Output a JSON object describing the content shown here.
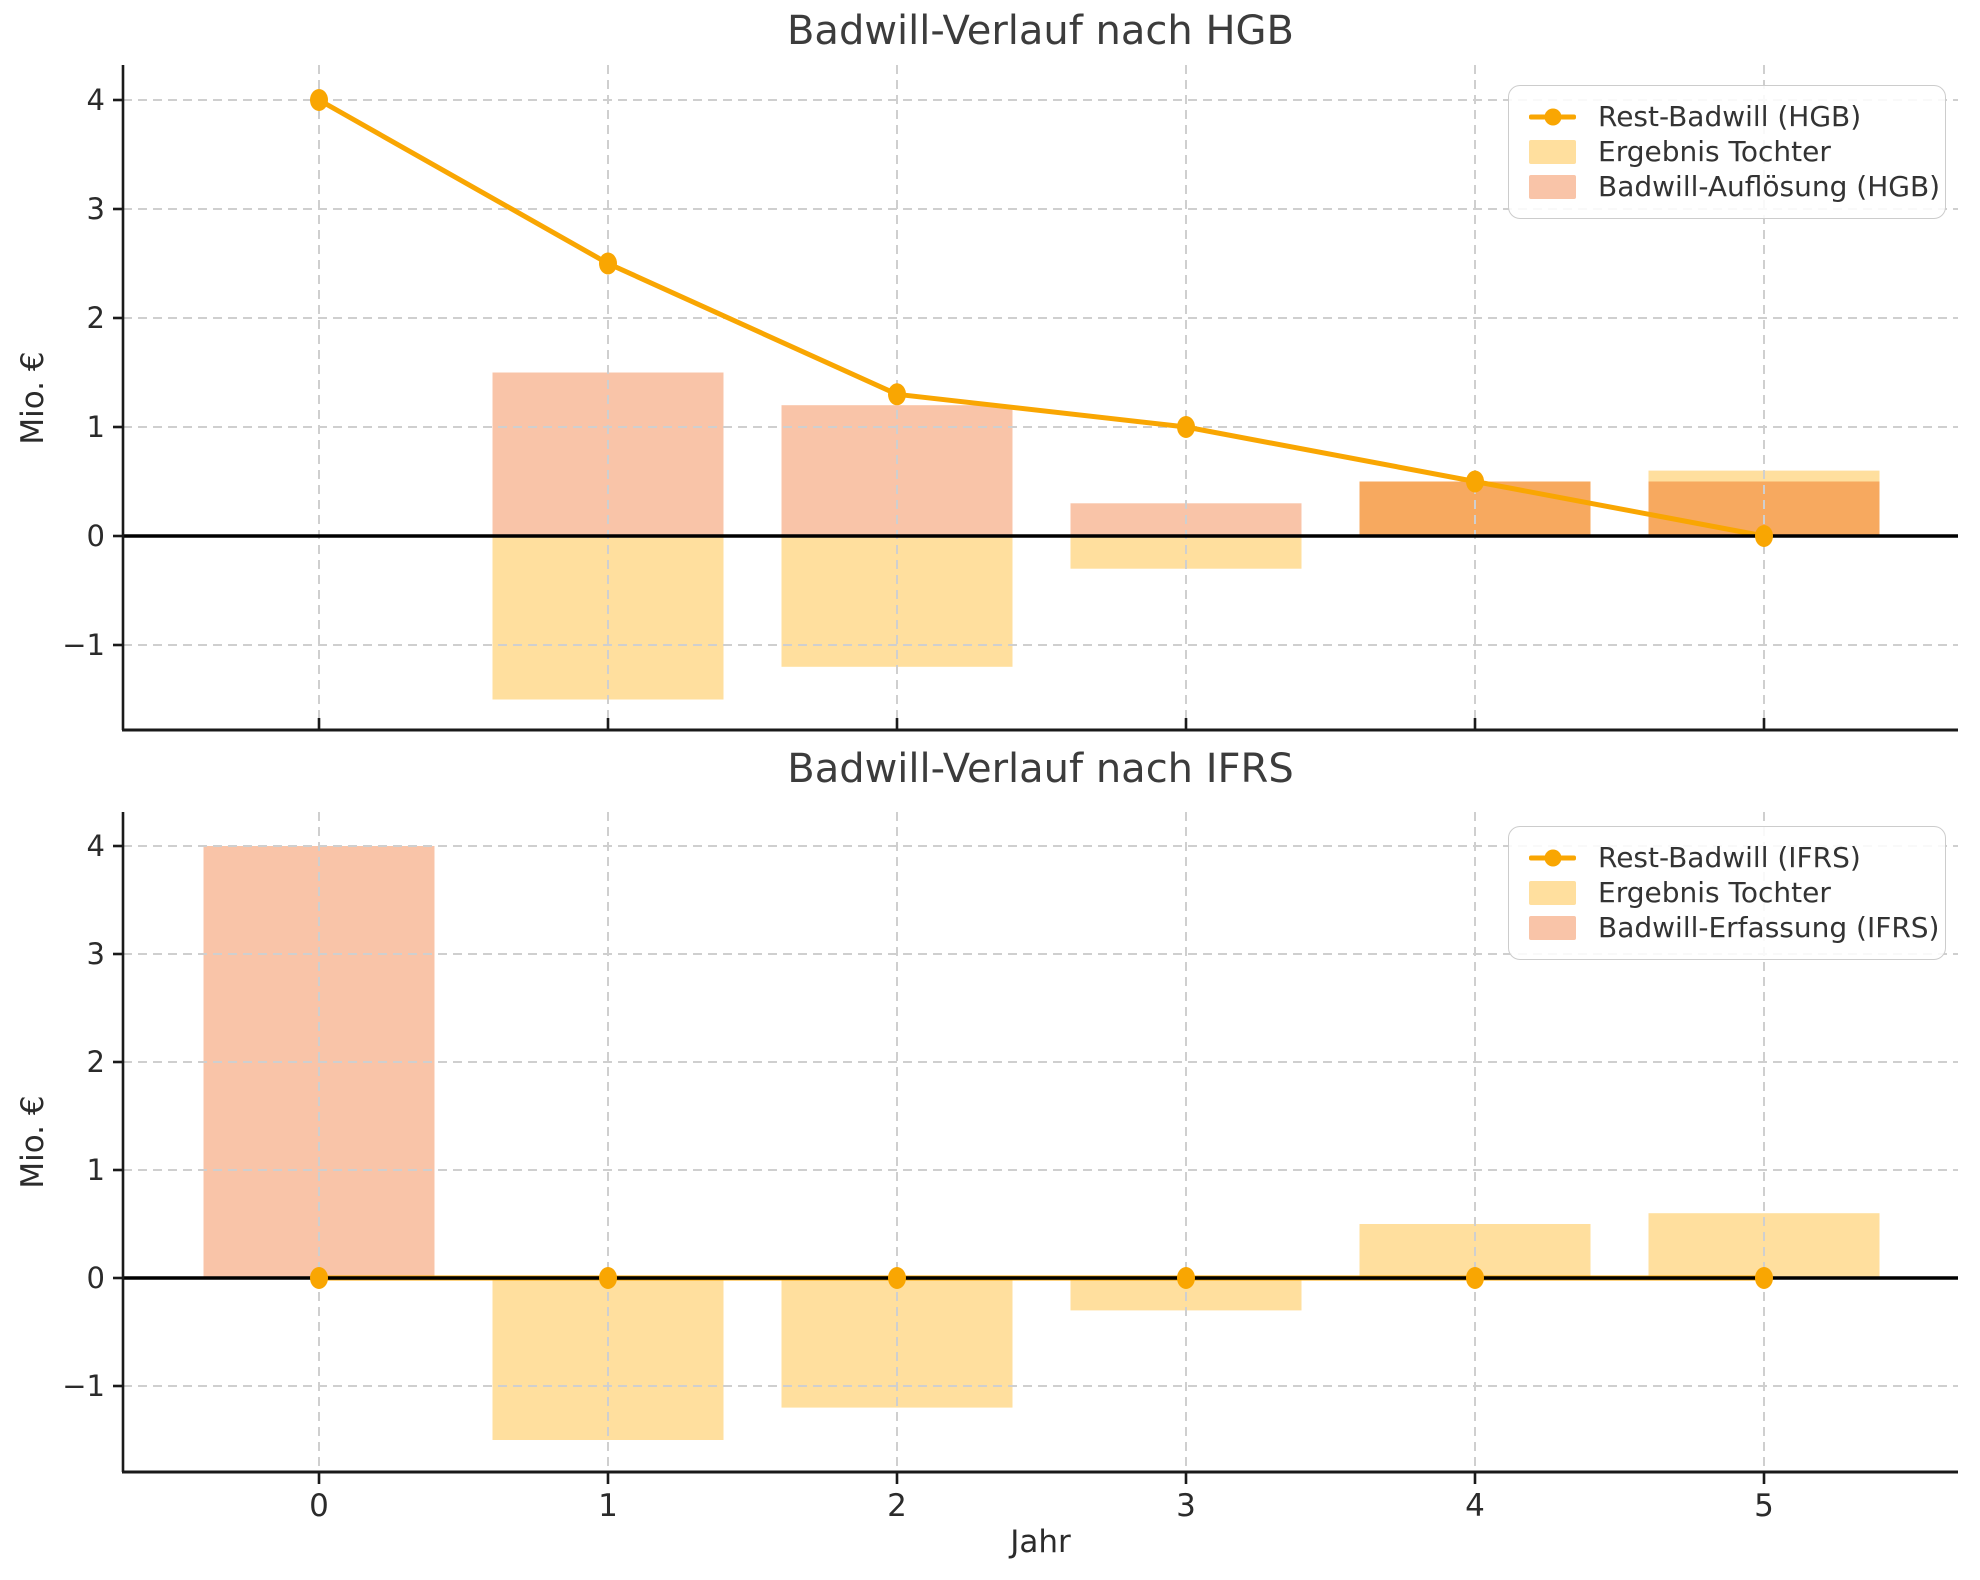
{
  "figure": {
    "xlabel": "Jahr",
    "colors": {
      "background": "#ffffff",
      "grid": "#cfcfcf",
      "zero_line": "#000000",
      "spine": "#1a1a1a",
      "tick_text": "#2b2b2b",
      "title_text": "#3c3c3c"
    }
  },
  "chart_data": [
    {
      "type": "line+bar",
      "title": "Badwill-Verlauf nach HGB",
      "ylabel": "Mio. €",
      "x": [
        0,
        1,
        2,
        3,
        4,
        5
      ],
      "xticklabels": [
        "0",
        "1",
        "2",
        "3",
        "4",
        "5"
      ],
      "show_xticklabels": false,
      "yticks": [
        -1,
        0,
        1,
        2,
        3,
        4
      ],
      "yticklabels": [
        "−1",
        "0",
        "1",
        "2",
        "3",
        "4"
      ],
      "xlim": [
        -0.68,
        5.67
      ],
      "ylim": [
        -1.78,
        4.32
      ],
      "grid": true,
      "bar_width": 0.8,
      "bar_overlap_color": "#F7A95F",
      "legend": {
        "position": "upper right",
        "entries": [
          {
            "label": "Rest-Badwill (HGB)",
            "kind": "line",
            "color": "#F9A602"
          },
          {
            "label": "Ergebnis Tochter",
            "kind": "patch",
            "color": "#FFDF9E"
          },
          {
            "label": "Badwill-Auflösung (HGB)",
            "kind": "patch",
            "color": "#F9C4A8"
          }
        ]
      },
      "series": [
        {
          "name": "Rest-Badwill (HGB)",
          "kind": "line",
          "color": "#F9A602",
          "values": [
            4,
            2.5,
            1.3,
            1.0,
            0.5,
            0
          ]
        },
        {
          "name": "Ergebnis Tochter",
          "kind": "bar",
          "color": "#FFDF9E",
          "values": [
            null,
            -1.5,
            -1.2,
            -0.3,
            0.5,
            0.6
          ]
        },
        {
          "name": "Badwill-Auflösung (HGB)",
          "kind": "bar",
          "color": "#F9C4A8",
          "values": [
            null,
            1.5,
            1.2,
            0.3,
            0.5,
            0.5
          ]
        }
      ]
    },
    {
      "type": "line+bar",
      "title": "Badwill-Verlauf nach IFRS",
      "ylabel": "Mio. €",
      "x": [
        0,
        1,
        2,
        3,
        4,
        5
      ],
      "xticklabels": [
        "0",
        "1",
        "2",
        "3",
        "4",
        "5"
      ],
      "show_xticklabels": true,
      "yticks": [
        -1,
        0,
        1,
        2,
        3,
        4
      ],
      "yticklabels": [
        "−1",
        "0",
        "1",
        "2",
        "3",
        "4"
      ],
      "xlim": [
        -0.68,
        5.67
      ],
      "ylim": [
        -1.8,
        4.31
      ],
      "grid": true,
      "bar_width": 0.8,
      "bar_overlap_color": "#F7A95F",
      "legend": {
        "position": "upper right",
        "entries": [
          {
            "label": "Rest-Badwill (IFRS)",
            "kind": "line",
            "color": "#F9A602"
          },
          {
            "label": "Ergebnis Tochter",
            "kind": "patch",
            "color": "#FFDF9E"
          },
          {
            "label": "Badwill-Erfassung (IFRS)",
            "kind": "patch",
            "color": "#F9C4A8"
          }
        ]
      },
      "series": [
        {
          "name": "Rest-Badwill (IFRS)",
          "kind": "line",
          "color": "#F9A602",
          "values": [
            0,
            0,
            0,
            0,
            0,
            0
          ]
        },
        {
          "name": "Ergebnis Tochter",
          "kind": "bar",
          "color": "#FFDF9E",
          "values": [
            null,
            -1.5,
            -1.2,
            -0.3,
            0.5,
            0.6
          ]
        },
        {
          "name": "Badwill-Erfassung (IFRS)",
          "kind": "bar",
          "color": "#F9C4A8",
          "values": [
            4,
            null,
            null,
            null,
            null,
            null
          ]
        }
      ]
    }
  ]
}
